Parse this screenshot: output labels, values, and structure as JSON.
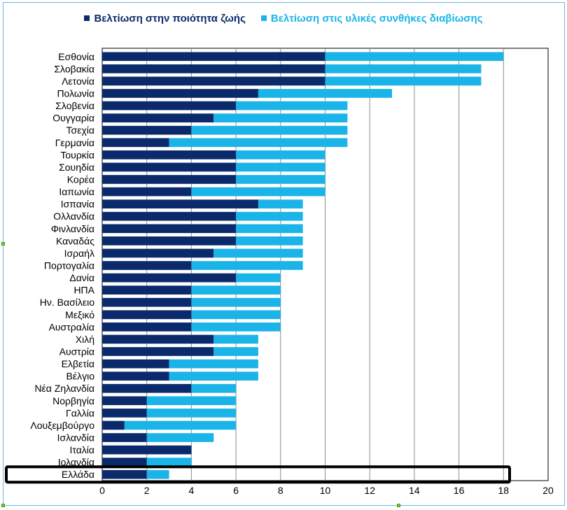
{
  "chart_data": {
    "type": "bar",
    "orientation": "horizontal",
    "stacked": true,
    "title": "",
    "xlabel": "",
    "ylabel": "",
    "xlim": [
      0,
      20
    ],
    "xticks": [
      0,
      2,
      4,
      6,
      8,
      10,
      12,
      14,
      16,
      18,
      20
    ],
    "grid": "vertical",
    "legend_position": "top",
    "highlighted_category": "Ελλάδα",
    "categories": [
      "Εσθονία",
      "Σλοβακία",
      "Λετονία",
      "Πολωνία",
      "Σλοβενία",
      "Ουγγαρία",
      "Τσεχία",
      "Γερμανία",
      "Τουρκία",
      "Σουηδία",
      "Κορέα",
      "Ιαπωνία",
      "Ισπανία",
      "Ολλανδία",
      "Φινλανδία",
      "Καναδάς",
      "Ισραήλ",
      "Πορτογαλία",
      "Δανία",
      "ΗΠΑ",
      "Ην. Βασίλειο",
      "Μεξικό",
      "Αυστραλία",
      "Χιλή",
      "Αυστρία",
      "Ελβετία",
      "Βέλγιο",
      "Νέα Ζηλανδία",
      "Νορβηγία",
      "Γαλλία",
      "Λουξεμβούργο",
      "Ισλανδία",
      "Ιταλία",
      "Ιολανδία",
      "Ελλάδα"
    ],
    "series": [
      {
        "name": "Βελτίωση στην ποιότητα ζωής",
        "color": "#0b2a6b",
        "values": [
          10,
          10,
          10,
          7,
          6,
          5,
          4,
          3,
          6,
          6,
          6,
          4,
          7,
          6,
          6,
          6,
          5,
          4,
          6,
          4,
          4,
          4,
          4,
          5,
          5,
          3,
          3,
          4,
          2,
          2,
          1,
          2,
          4,
          2,
          2
        ]
      },
      {
        "name": "Βελτίωση στις υλικές συνθήκες διαβίωσης",
        "color": "#1ab4e8",
        "values": [
          8,
          7,
          7,
          6,
          5,
          6,
          7,
          8,
          4,
          4,
          4,
          6,
          2,
          3,
          3,
          3,
          4,
          5,
          2,
          4,
          4,
          4,
          4,
          2,
          2,
          4,
          4,
          2,
          4,
          4,
          5,
          3,
          0,
          2,
          1
        ]
      }
    ]
  }
}
